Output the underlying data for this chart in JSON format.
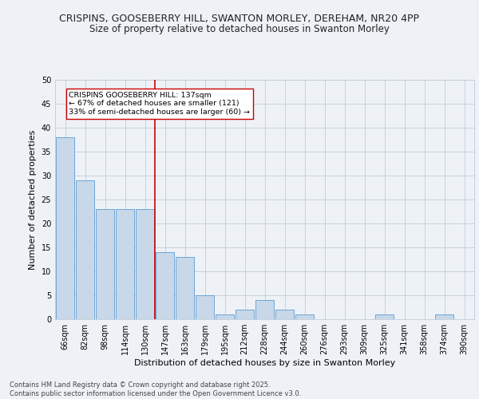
{
  "title_line1": "CRISPINS, GOOSEBERRY HILL, SWANTON MORLEY, DEREHAM, NR20 4PP",
  "title_line2": "Size of property relative to detached houses in Swanton Morley",
  "xlabel": "Distribution of detached houses by size in Swanton Morley",
  "ylabel": "Number of detached properties",
  "categories": [
    "66sqm",
    "82sqm",
    "98sqm",
    "114sqm",
    "130sqm",
    "147sqm",
    "163sqm",
    "179sqm",
    "195sqm",
    "212sqm",
    "228sqm",
    "244sqm",
    "260sqm",
    "276sqm",
    "293sqm",
    "309sqm",
    "325sqm",
    "341sqm",
    "358sqm",
    "374sqm",
    "390sqm"
  ],
  "values": [
    38,
    29,
    23,
    23,
    23,
    14,
    13,
    5,
    1,
    2,
    4,
    2,
    1,
    0,
    0,
    0,
    1,
    0,
    0,
    1,
    0
  ],
  "bar_color": "#c8d8e8",
  "bar_edge_color": "#5b9bd5",
  "vline_x_index": 5,
  "vline_color": "#cc0000",
  "annotation_text": "CRISPINS GOOSEBERRY HILL: 137sqm\n← 67% of detached houses are smaller (121)\n33% of semi-detached houses are larger (60) →",
  "annotation_box_color": "#ffffff",
  "annotation_box_edge": "#cc0000",
  "ylim": [
    0,
    50
  ],
  "yticks": [
    0,
    5,
    10,
    15,
    20,
    25,
    30,
    35,
    40,
    45,
    50
  ],
  "footer_line1": "Contains HM Land Registry data © Crown copyright and database right 2025.",
  "footer_line2": "Contains public sector information licensed under the Open Government Licence v3.0.",
  "bg_color": "#eef2f7",
  "grid_color": "#c0ccd8",
  "title_fontsize": 9,
  "subtitle_fontsize": 8.5,
  "axis_label_fontsize": 8,
  "tick_fontsize": 7,
  "annotation_fontsize": 6.8,
  "footer_fontsize": 6
}
